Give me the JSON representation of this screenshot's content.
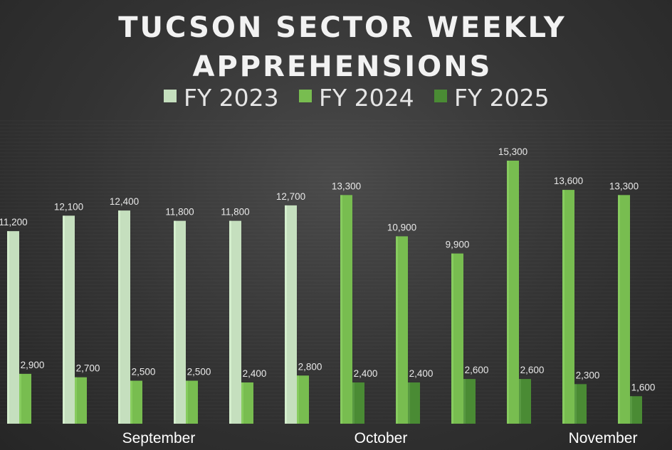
{
  "chart_data": {
    "type": "bar",
    "title_lines": [
      "TUCSON SECTOR WEEKLY",
      "APPREHENSIONS"
    ],
    "legend_position": "top",
    "grid": false,
    "ylim": [
      0,
      16000
    ],
    "group_labels": [
      {
        "label": "September",
        "center_group": 3
      },
      {
        "label": "October",
        "center_group": 7
      },
      {
        "label": "November",
        "center_group": 11
      }
    ],
    "series": [
      {
        "name": "FY 2023",
        "color": "#c5dfbe"
      },
      {
        "name": "FY 2024",
        "color": "#78bd50"
      },
      {
        "name": "FY 2025",
        "color": "#4a8b34"
      }
    ],
    "groups": [
      {
        "bars": [
          {
            "series": 0,
            "value": 11200,
            "label": "11,200"
          },
          {
            "series": 1,
            "value": 2900,
            "label": "2,900"
          }
        ]
      },
      {
        "bars": [
          {
            "series": 0,
            "value": 12100,
            "label": "12,100"
          },
          {
            "series": 1,
            "value": 2700,
            "label": "2,700"
          }
        ]
      },
      {
        "bars": [
          {
            "series": 0,
            "value": 12400,
            "label": "12,400"
          },
          {
            "series": 1,
            "value": 2500,
            "label": "2,500"
          }
        ]
      },
      {
        "bars": [
          {
            "series": 0,
            "value": 11800,
            "label": "11,800"
          },
          {
            "series": 1,
            "value": 2500,
            "label": "2,500"
          }
        ]
      },
      {
        "bars": [
          {
            "series": 0,
            "value": 11800,
            "label": "11,800"
          },
          {
            "series": 1,
            "value": 2400,
            "label": "2,400"
          }
        ]
      },
      {
        "bars": [
          {
            "series": 0,
            "value": 12700,
            "label": "12,700"
          },
          {
            "series": 1,
            "value": 2800,
            "label": "2,800"
          }
        ]
      },
      {
        "bars": [
          {
            "series": 1,
            "value": 13300,
            "label": "13,300"
          },
          {
            "series": 2,
            "value": 2400,
            "label": "2,400"
          }
        ]
      },
      {
        "bars": [
          {
            "series": 1,
            "value": 10900,
            "label": "10,900"
          },
          {
            "series": 2,
            "value": 2400,
            "label": "2,400"
          }
        ]
      },
      {
        "bars": [
          {
            "series": 1,
            "value": 9900,
            "label": "9,900"
          },
          {
            "series": 2,
            "value": 2600,
            "label": "2,600"
          }
        ]
      },
      {
        "bars": [
          {
            "series": 1,
            "value": 15300,
            "label": "15,300"
          },
          {
            "series": 2,
            "value": 2600,
            "label": "2,600"
          }
        ]
      },
      {
        "bars": [
          {
            "series": 1,
            "value": 13600,
            "label": "13,600"
          },
          {
            "series": 2,
            "value": 2300,
            "label": "2,300"
          }
        ]
      },
      {
        "bars": [
          {
            "series": 1,
            "value": 13300,
            "label": "13,300"
          },
          {
            "series": 2,
            "value": 1600,
            "label": "1,600"
          }
        ]
      }
    ]
  }
}
